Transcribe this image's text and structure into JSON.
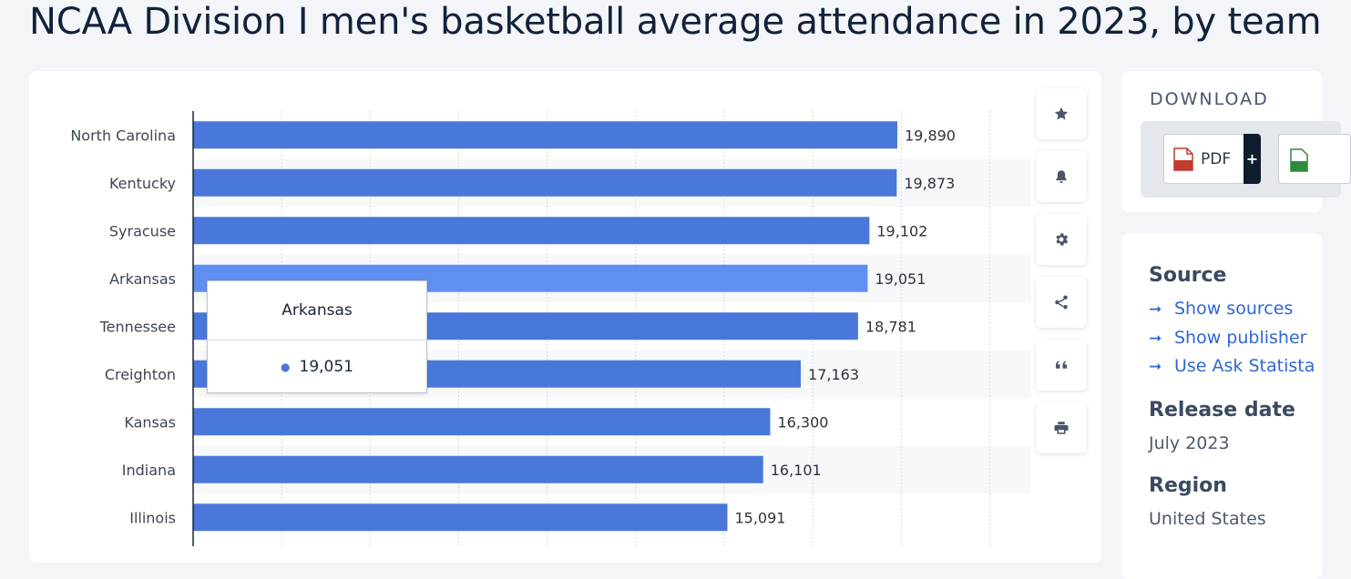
{
  "title": "NCAA Division I men's basketball average attendance in 2023, by team",
  "chart_data": {
    "type": "bar",
    "orientation": "horizontal",
    "categories": [
      "North Carolina",
      "Kentucky",
      "Syracuse",
      "Arkansas",
      "Tennessee",
      "Creighton",
      "Kansas",
      "Indiana",
      "Illinois"
    ],
    "values": [
      19890,
      19873,
      19102,
      19051,
      18781,
      17163,
      16300,
      16101,
      15091
    ],
    "value_labels": [
      "19,890",
      "19,873",
      "19,102",
      "19,051",
      "18,781",
      "17,163",
      "16,300",
      "16,101",
      "15,091"
    ],
    "xlim": [
      0,
      22500
    ],
    "grid": true,
    "highlighted": "Arkansas",
    "colors": {
      "bar": "#4a78da",
      "highlight": "#5f8ff0"
    }
  },
  "tooltip": {
    "title": "Arkansas",
    "value": "19,051"
  },
  "actions": [
    {
      "name": "favorite",
      "icon": "star-icon"
    },
    {
      "name": "notification",
      "icon": "bell-icon"
    },
    {
      "name": "settings",
      "icon": "gear-icon"
    },
    {
      "name": "share",
      "icon": "share-icon"
    },
    {
      "name": "cite",
      "icon": "quote-icon"
    },
    {
      "name": "print",
      "icon": "printer-icon"
    }
  ],
  "download": {
    "heading": "DOWNLOAD",
    "pdf_label": "PDF",
    "plus": "+"
  },
  "sidebar": {
    "source_heading": "Source",
    "links": [
      "Show sources",
      "Show publisher",
      "Use Ask Statista"
    ],
    "release_heading": "Release date",
    "release_value": "July 2023",
    "region_heading": "Region",
    "region_value": "United States"
  }
}
